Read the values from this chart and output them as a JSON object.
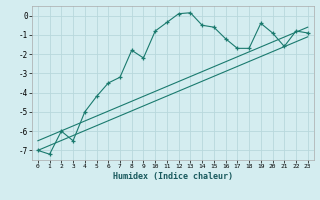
{
  "xlabel": "Humidex (Indice chaleur)",
  "ylabel": "",
  "bg_color": "#d4edf0",
  "grid_color": "#b8d8dc",
  "line_color": "#1a7a6e",
  "xlim": [
    -0.5,
    23.5
  ],
  "ylim": [
    -7.5,
    0.5
  ],
  "yticks": [
    0,
    -1,
    -2,
    -3,
    -4,
    -5,
    -6,
    -7
  ],
  "xticks": [
    0,
    1,
    2,
    3,
    4,
    5,
    6,
    7,
    8,
    9,
    10,
    11,
    12,
    13,
    14,
    15,
    16,
    17,
    18,
    19,
    20,
    21,
    22,
    23
  ],
  "main_x": [
    0,
    1,
    2,
    3,
    4,
    5,
    6,
    7,
    8,
    9,
    10,
    11,
    12,
    13,
    14,
    15,
    16,
    17,
    18,
    19,
    20,
    21,
    22,
    23
  ],
  "main_y": [
    -7.0,
    -7.2,
    -6.0,
    -6.5,
    -5.0,
    -4.2,
    -3.5,
    -3.2,
    -1.8,
    -2.2,
    -0.8,
    -0.35,
    0.1,
    0.15,
    -0.5,
    -0.6,
    -1.2,
    -1.7,
    -1.7,
    -0.4,
    -0.9,
    -1.6,
    -0.8,
    -0.9
  ],
  "trend1_x": [
    0,
    23
  ],
  "trend1_y": [
    -6.5,
    -0.6
  ],
  "trend2_x": [
    0,
    23
  ],
  "trend2_y": [
    -7.0,
    -1.1
  ]
}
